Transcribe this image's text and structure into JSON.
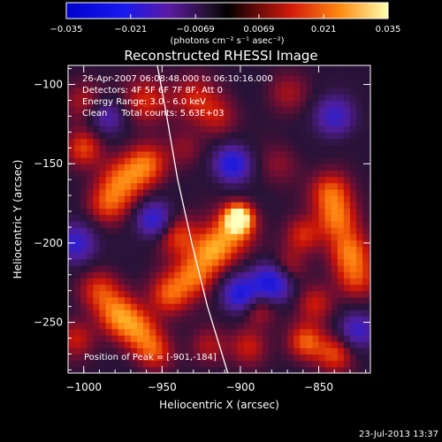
{
  "chart_data": {
    "type": "heatmap",
    "title": "Reconstructed RHESSI Image",
    "xlabel": "Heliocentric X (arcsec)",
    "ylabel": "Heliocentric Y (arcsec)",
    "xlim": [
      -1010,
      -817
    ],
    "ylim": [
      -282,
      -88
    ],
    "x_ticks": [
      -1000,
      -950,
      -900,
      -850
    ],
    "y_ticks": [
      -100,
      -150,
      -200,
      -250
    ],
    "x_tick_labels": [
      "−1000",
      "−950",
      "−900",
      "−850"
    ],
    "y_tick_labels": [
      "−100",
      "−150",
      "−200",
      "−250"
    ],
    "colorbar": {
      "range": [
        -0.035,
        0.035
      ],
      "ticks": [
        -0.035,
        -0.021,
        -0.0069,
        0.0069,
        0.021,
        0.035
      ],
      "tick_labels": [
        "−0.035",
        "−0.021",
        "−0.0069",
        "0.0069",
        "0.021",
        "0.035"
      ],
      "units": "(photons cm⁻² s⁻¹ asec⁻²)"
    },
    "annotations": [
      "26-Apr-2007 06:08:48.000 to 06:10:16.000",
      "Detectors: 4F 5F 6F 7F 8F, Att 0",
      "Energy Range: 3.0 - 6.0 keV",
      "Clean     Total counts: 5.63E+03"
    ],
    "peak_label": "Position of Peak = [-901,-184]",
    "peak": [
      -901,
      -184
    ],
    "limb_curve": [
      [
        -953,
        -88
      ],
      [
        -947,
        -120
      ],
      [
        -940,
        -160
      ],
      [
        -931,
        -200
      ],
      [
        -921,
        -240
      ],
      [
        -908,
        -282
      ]
    ],
    "blobs": [
      {
        "x": -901,
        "y": -184,
        "a": 1.0,
        "s": 6
      },
      {
        "x": -905,
        "y": -192,
        "a": 0.55,
        "s": 10
      },
      {
        "x": -918,
        "y": -205,
        "a": 0.65,
        "s": 9
      },
      {
        "x": -930,
        "y": -220,
        "a": 0.55,
        "s": 9
      },
      {
        "x": -945,
        "y": -232,
        "a": 0.55,
        "s": 9
      },
      {
        "x": -940,
        "y": -195,
        "a": 0.45,
        "s": 9
      },
      {
        "x": -960,
        "y": -150,
        "a": 0.55,
        "s": 9
      },
      {
        "x": -975,
        "y": -160,
        "a": 0.55,
        "s": 10
      },
      {
        "x": -985,
        "y": -175,
        "a": 0.45,
        "s": 9
      },
      {
        "x": -990,
        "y": -230,
        "a": 0.45,
        "s": 9
      },
      {
        "x": -978,
        "y": -245,
        "a": 0.6,
        "s": 9
      },
      {
        "x": -965,
        "y": -255,
        "a": 0.55,
        "s": 9
      },
      {
        "x": -955,
        "y": -268,
        "a": 0.45,
        "s": 8
      },
      {
        "x": -1000,
        "y": -140,
        "a": 0.45,
        "s": 8
      },
      {
        "x": -960,
        "y": -110,
        "a": 0.4,
        "s": 10
      },
      {
        "x": -930,
        "y": -108,
        "a": 0.35,
        "s": 10
      },
      {
        "x": -915,
        "y": -120,
        "a": 0.3,
        "s": 9
      },
      {
        "x": -935,
        "y": -140,
        "a": 0.2,
        "s": 8
      },
      {
        "x": -842,
        "y": -168,
        "a": 0.55,
        "s": 9
      },
      {
        "x": -838,
        "y": -185,
        "a": 0.55,
        "s": 9
      },
      {
        "x": -830,
        "y": -205,
        "a": 0.55,
        "s": 9
      },
      {
        "x": -826,
        "y": -222,
        "a": 0.45,
        "s": 9
      },
      {
        "x": -860,
        "y": -195,
        "a": 0.4,
        "s": 8
      },
      {
        "x": -870,
        "y": -215,
        "a": 0.35,
        "s": 8
      },
      {
        "x": -852,
        "y": -238,
        "a": 0.35,
        "s": 8
      },
      {
        "x": -858,
        "y": -262,
        "a": 0.55,
        "s": 8
      },
      {
        "x": -840,
        "y": -270,
        "a": 0.45,
        "s": 8
      },
      {
        "x": -888,
        "y": -240,
        "a": 0.4,
        "s": 8
      },
      {
        "x": -895,
        "y": -265,
        "a": 0.35,
        "s": 8
      },
      {
        "x": -1000,
        "y": -110,
        "a": 0.3,
        "s": 9
      },
      {
        "x": -1005,
        "y": -260,
        "a": 0.35,
        "s": 8
      },
      {
        "x": -920,
        "y": -265,
        "a": 0.3,
        "s": 8
      },
      {
        "x": -870,
        "y": -105,
        "a": 0.25,
        "s": 9
      },
      {
        "x": -875,
        "y": -150,
        "a": 0.2,
        "s": 9
      },
      {
        "x": -905,
        "y": -150,
        "a": -0.7,
        "s": 8
      },
      {
        "x": -880,
        "y": -225,
        "a": -0.8,
        "s": 9
      },
      {
        "x": -900,
        "y": -232,
        "a": -0.7,
        "s": 8
      },
      {
        "x": -955,
        "y": -185,
        "a": -0.6,
        "s": 8
      },
      {
        "x": -1005,
        "y": -200,
        "a": -0.55,
        "s": 9
      },
      {
        "x": -840,
        "y": -120,
        "a": -0.5,
        "s": 9
      },
      {
        "x": -825,
        "y": -255,
        "a": -0.5,
        "s": 8
      },
      {
        "x": -985,
        "y": -120,
        "a": -0.4,
        "s": 8
      }
    ]
  },
  "footer": {
    "date": "23-Jul-2013 13:37"
  }
}
